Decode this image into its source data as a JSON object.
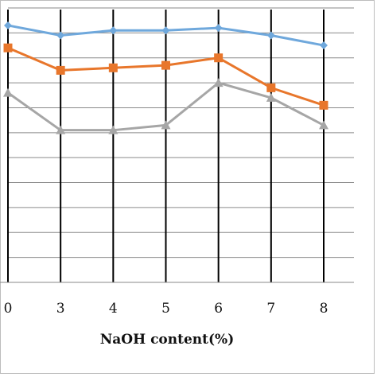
{
  "chart_data": {
    "type": "line",
    "title": "",
    "xlabel": "NaOH content(%)",
    "ylabel": "",
    "categories": [
      "0",
      "3",
      "4",
      "5",
      "6",
      "7",
      "8"
    ],
    "ylim": [
      0,
      11
    ],
    "grid": true,
    "series": [
      {
        "values": [
          10.3,
          9.9,
          10.1,
          10.1,
          10.2,
          9.9,
          9.5
        ],
        "color": "#6fa8dc",
        "marker": "diamond"
      },
      {
        "values": [
          9.4,
          8.5,
          8.6,
          8.7,
          9.0,
          7.8,
          7.1
        ],
        "color": "#e8762b",
        "marker": "square"
      },
      {
        "values": [
          7.6,
          6.1,
          6.1,
          6.3,
          8.0,
          7.4,
          6.3
        ],
        "color": "#a6a6a6",
        "marker": "triangle"
      }
    ]
  }
}
